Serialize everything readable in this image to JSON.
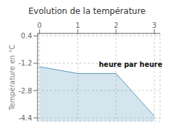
{
  "chart_data": {
    "type": "area",
    "title": "Evolution de la température",
    "y_label": "Température en °C",
    "x": [
      0,
      1,
      2,
      3
    ],
    "values": [
      -1.4,
      -1.8,
      -1.8,
      -4.3
    ],
    "color": "#5599bb",
    "xlim": [
      -0.05,
      3.15
    ],
    "xticks": [
      0,
      1,
      2,
      3
    ],
    "ylim": [
      -4.6,
      0.55
    ],
    "yticks": [
      0.4,
      -1.2,
      -2.8,
      -4.4
    ],
    "grid": true,
    "annotations": [
      {
        "text": "heure par heure",
        "x": 1.55,
        "y": -1.1
      }
    ]
  }
}
